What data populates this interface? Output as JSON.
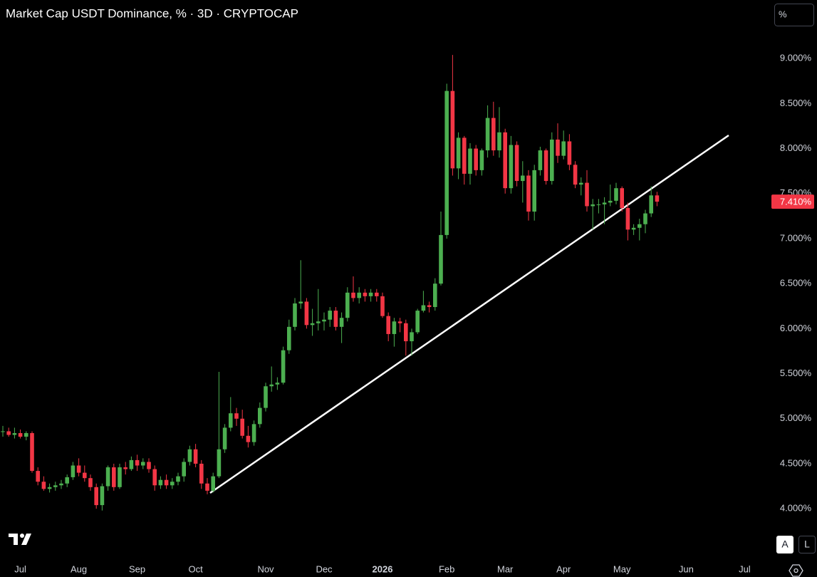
{
  "chart_data": {
    "type": "candlestick",
    "title": "Market Cap USDT Dominance, % · 3D · CRYPTOCAP",
    "categories": [
      null,
      null,
      null,
      "Jul",
      null,
      null,
      null,
      null,
      null,
      null,
      null,
      null,
      null,
      "Aug",
      null,
      null,
      null,
      null,
      null,
      null,
      null,
      null,
      null,
      "Sep",
      null,
      null,
      null,
      null,
      null,
      null,
      null,
      null,
      null,
      "Oct",
      null,
      null,
      null,
      null,
      null,
      null,
      null,
      null,
      null,
      null,
      null,
      "Nov",
      null,
      null,
      null,
      null,
      null,
      null,
      null,
      null,
      null,
      "Dec",
      null,
      null,
      null,
      null,
      null,
      null,
      null,
      null,
      null,
      "2026",
      null,
      null,
      null,
      null,
      null,
      null,
      null,
      null,
      null,
      null,
      "Feb",
      null,
      null,
      null,
      null,
      null,
      null,
      null,
      null,
      null,
      "Mar",
      null,
      null,
      null,
      null,
      null,
      null,
      null,
      null,
      null,
      "Apr",
      null,
      null,
      null,
      null,
      null,
      null,
      null,
      null,
      null,
      "May",
      null,
      null,
      null,
      null,
      null,
      null,
      null,
      null,
      null,
      null,
      "Jun",
      null,
      null,
      null,
      null,
      null,
      null,
      null,
      null,
      null,
      "Jul"
    ],
    "series": [
      {
        "up_color": "#4caf50",
        "down_color": "#f23645",
        "open": [
          4.86,
          4.86,
          4.82,
          4.84,
          4.8,
          4.84,
          4.42,
          4.3,
          4.22,
          4.24,
          4.26,
          4.28,
          4.35,
          4.48,
          4.4,
          4.34,
          4.24,
          4.04,
          4.25,
          4.46,
          4.24,
          4.46,
          4.44,
          4.54,
          4.48,
          4.52,
          4.44,
          4.26,
          4.32,
          4.26,
          4.3,
          4.36,
          4.52,
          4.66,
          4.5,
          4.28,
          4.2,
          4.36,
          4.66,
          4.9,
          5.06,
          5.0,
          4.81,
          4.74,
          4.94,
          5.12,
          5.36,
          5.38,
          5.4,
          5.76,
          6.02,
          6.28,
          6.3,
          6.04,
          6.06,
          6.08,
          6.1,
          6.2,
          6.02,
          6.12,
          6.4,
          6.34,
          6.4,
          6.36,
          6.4,
          6.36,
          6.14,
          5.94,
          6.08,
          6.06,
          5.86,
          5.96,
          6.2,
          6.26,
          6.24,
          6.5,
          7.04,
          8.64,
          7.78,
          8.12,
          7.72,
          8.0,
          7.76,
          7.98,
          8.34,
          7.98,
          8.18,
          7.56,
          8.04,
          7.64,
          7.7,
          7.3,
          7.76,
          7.98,
          7.64,
          8.1,
          7.92,
          8.08,
          7.82,
          7.6,
          7.62,
          7.36,
          7.38,
          7.38,
          7.4,
          7.42,
          7.56,
          7.34,
          7.1,
          7.12,
          7.16,
          7.28,
          7.48,
          null,
          null,
          null,
          null,
          null,
          null,
          null,
          null,
          null,
          null,
          null,
          null,
          null,
          null,
          null
        ],
        "high": [
          4.92,
          4.9,
          4.9,
          4.88,
          4.86,
          4.86,
          4.46,
          4.36,
          4.28,
          4.3,
          4.32,
          4.38,
          4.52,
          4.56,
          4.48,
          4.38,
          4.28,
          4.28,
          4.48,
          4.5,
          4.5,
          4.52,
          4.58,
          4.6,
          4.56,
          4.56,
          4.48,
          4.36,
          4.38,
          4.34,
          4.4,
          4.56,
          4.7,
          4.72,
          4.54,
          4.34,
          4.4,
          5.52,
          4.94,
          5.24,
          5.12,
          5.1,
          4.92,
          4.98,
          5.18,
          5.4,
          5.58,
          5.46,
          5.8,
          6.1,
          6.34,
          6.76,
          6.34,
          6.22,
          6.44,
          6.18,
          6.24,
          6.24,
          6.18,
          6.46,
          6.58,
          6.46,
          6.44,
          6.44,
          6.44,
          6.4,
          6.18,
          6.12,
          6.12,
          6.1,
          6.0,
          6.22,
          6.42,
          6.3,
          6.56,
          7.3,
          8.72,
          9.04,
          8.18,
          8.14,
          8.06,
          8.04,
          8.0,
          8.48,
          8.52,
          8.46,
          8.22,
          8.14,
          8.08,
          7.86,
          7.76,
          7.82,
          8.02,
          8.0,
          8.18,
          8.28,
          8.2,
          8.16,
          7.86,
          7.68,
          7.76,
          7.44,
          7.44,
          7.46,
          7.6,
          7.62,
          7.58,
          7.4,
          7.16,
          7.22,
          7.32,
          7.58,
          7.52,
          null,
          null,
          null,
          null,
          null,
          null,
          null,
          null,
          null,
          null,
          null,
          null,
          null,
          null,
          null
        ],
        "low": [
          4.8,
          4.8,
          4.78,
          4.78,
          4.76,
          4.4,
          4.26,
          4.2,
          4.18,
          4.2,
          4.22,
          4.24,
          4.32,
          4.36,
          4.3,
          4.2,
          4.0,
          3.98,
          4.2,
          4.2,
          4.22,
          4.38,
          4.42,
          4.42,
          4.44,
          4.4,
          4.2,
          4.22,
          4.22,
          4.22,
          4.26,
          4.3,
          4.48,
          4.46,
          4.22,
          4.16,
          4.18,
          4.34,
          4.62,
          4.86,
          4.92,
          4.78,
          4.68,
          4.7,
          4.9,
          5.08,
          5.3,
          5.32,
          5.38,
          5.72,
          5.98,
          6.22,
          6.0,
          5.92,
          5.98,
          5.98,
          6.02,
          5.98,
          5.84,
          6.08,
          6.3,
          6.28,
          6.3,
          6.3,
          6.3,
          6.12,
          5.86,
          5.8,
          5.96,
          5.7,
          5.7,
          5.94,
          6.18,
          6.18,
          6.2,
          6.48,
          7.0,
          7.7,
          7.66,
          7.6,
          7.6,
          7.7,
          7.7,
          7.9,
          7.92,
          7.9,
          7.5,
          7.5,
          7.58,
          7.4,
          7.2,
          7.2,
          7.7,
          7.6,
          7.6,
          7.84,
          7.88,
          7.76,
          7.56,
          7.48,
          7.3,
          7.1,
          7.28,
          7.16,
          7.36,
          7.38,
          7.3,
          6.98,
          7.04,
          6.98,
          7.06,
          7.24,
          7.36,
          null,
          null,
          null,
          null,
          null,
          null,
          null,
          null,
          null,
          null,
          null,
          null,
          null,
          null,
          null
        ],
        "close": [
          4.86,
          4.82,
          4.84,
          4.8,
          4.84,
          4.42,
          4.3,
          4.22,
          4.24,
          4.26,
          4.28,
          4.35,
          4.48,
          4.4,
          4.34,
          4.24,
          4.04,
          4.25,
          4.46,
          4.24,
          4.46,
          4.44,
          4.54,
          4.48,
          4.52,
          4.44,
          4.26,
          4.32,
          4.26,
          4.3,
          4.36,
          4.52,
          4.66,
          4.5,
          4.28,
          4.2,
          4.36,
          4.66,
          4.9,
          5.06,
          5.0,
          4.81,
          4.74,
          4.94,
          5.12,
          5.36,
          5.38,
          5.4,
          5.76,
          6.02,
          6.28,
          6.3,
          6.04,
          6.06,
          6.08,
          6.1,
          6.2,
          6.02,
          6.12,
          6.4,
          6.34,
          6.4,
          6.36,
          6.4,
          6.36,
          6.14,
          5.94,
          6.08,
          6.06,
          5.86,
          5.96,
          6.2,
          6.26,
          6.24,
          6.5,
          7.04,
          8.64,
          7.78,
          8.12,
          7.72,
          8.0,
          7.76,
          7.98,
          8.34,
          7.98,
          8.18,
          7.56,
          8.04,
          7.64,
          7.7,
          7.3,
          7.76,
          7.98,
          7.64,
          8.1,
          7.92,
          8.08,
          7.82,
          7.6,
          7.62,
          7.36,
          7.38,
          7.38,
          7.4,
          7.42,
          7.56,
          7.34,
          7.1,
          7.12,
          7.16,
          7.28,
          7.48,
          7.41,
          null,
          null,
          null,
          null,
          null,
          null,
          null,
          null,
          null,
          null,
          null,
          null,
          null,
          null,
          null
        ]
      }
    ],
    "last_price_label": "7.410%",
    "ylim": [
      3.4,
      9.65
    ],
    "yticks": [
      {
        "value": 4,
        "label": "4.000%"
      },
      {
        "value": 4.5,
        "label": "4.500%"
      },
      {
        "value": 5,
        "label": "5.000%"
      },
      {
        "value": 5.5,
        "label": "5.500%"
      },
      {
        "value": 6,
        "label": "6.000%"
      },
      {
        "value": 6.5,
        "label": "6.500%"
      },
      {
        "value": 7,
        "label": "7.000%"
      },
      {
        "value": 7.5,
        "label": "7.500%"
      },
      {
        "value": 8,
        "label": "8.000%"
      },
      {
        "value": 8.5,
        "label": "8.500%"
      },
      {
        "value": 9,
        "label": "9.000%"
      }
    ]
  },
  "ui": {
    "scale_button": "%",
    "auto_button": "A",
    "log_button": "L"
  }
}
